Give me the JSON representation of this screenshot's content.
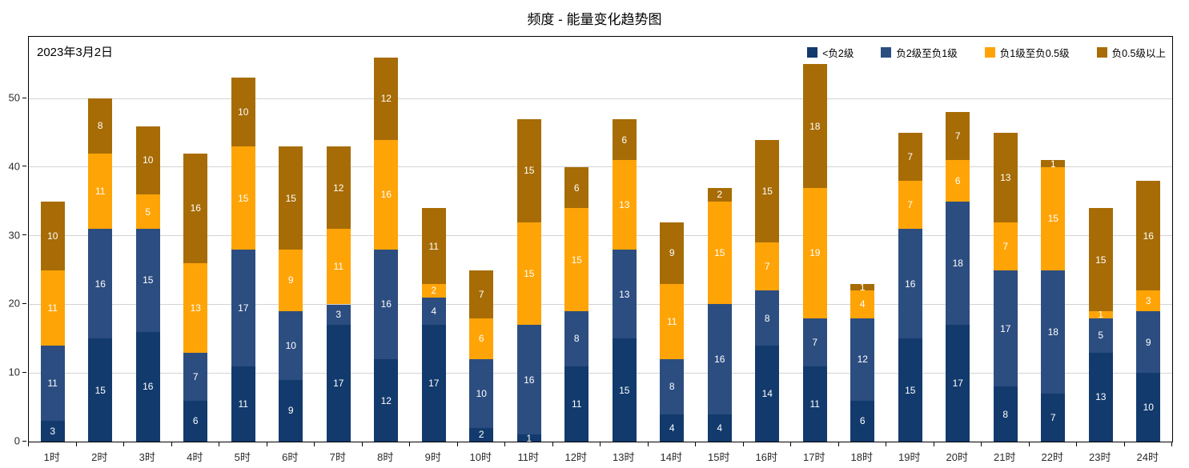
{
  "page_title": "频度 - 能量变化趋势图",
  "colors": {
    "series1": "#123a6d",
    "series2": "#2c4d80",
    "series3": "#ffa406",
    "series4": "#a76c05",
    "gridline": "#d3d3d3",
    "axis": "#000000",
    "bar_label": "#ffffff"
  },
  "chart_data": {
    "type": "bar",
    "stacked": true,
    "title": "频度 - 能量变化趋势图",
    "annotation": "2023年3月2日",
    "xlabel": "",
    "ylabel": "",
    "ylim": [
      0,
      59
    ],
    "yticks": [
      0,
      10,
      20,
      30,
      40,
      50
    ],
    "grid": true,
    "legend_position": "top-right",
    "categories": [
      "1时",
      "2时",
      "3时",
      "4时",
      "5时",
      "6时",
      "7时",
      "8时",
      "9时",
      "10时",
      "11时",
      "12时",
      "13时",
      "14时",
      "15时",
      "16时",
      "17时",
      "18时",
      "19时",
      "20时",
      "21时",
      "22时",
      "23时",
      "24时"
    ],
    "series": [
      {
        "name": "<负2级",
        "color": "#123a6d",
        "values": [
          3,
          15,
          16,
          6,
          11,
          9,
          17,
          12,
          17,
          2,
          1,
          11,
          15,
          4,
          4,
          14,
          11,
          6,
          15,
          17,
          8,
          7,
          13,
          10
        ]
      },
      {
        "name": "负2级至负1级",
        "color": "#2c4d80",
        "values": [
          11,
          16,
          15,
          7,
          17,
          10,
          3,
          16,
          4,
          10,
          16,
          8,
          13,
          8,
          16,
          8,
          7,
          12,
          16,
          18,
          17,
          18,
          5,
          9
        ]
      },
      {
        "name": "负1级至负0.5级",
        "color": "#ffa406",
        "values": [
          11,
          11,
          5,
          13,
          15,
          9,
          11,
          16,
          2,
          6,
          15,
          15,
          13,
          11,
          15,
          7,
          19,
          4,
          7,
          6,
          7,
          15,
          1,
          3
        ]
      },
      {
        "name": "负0.5级以上",
        "color": "#a76c05",
        "values": [
          10,
          8,
          10,
          16,
          10,
          15,
          12,
          12,
          11,
          7,
          15,
          6,
          6,
          9,
          2,
          15,
          18,
          1,
          7,
          7,
          13,
          1,
          15,
          16
        ]
      }
    ],
    "totals": [
      35,
      50,
      46,
      42,
      53,
      43,
      43,
      56,
      34,
      25,
      47,
      40,
      47,
      32,
      37,
      44,
      55,
      23,
      45,
      48,
      45,
      41,
      34,
      38
    ]
  }
}
